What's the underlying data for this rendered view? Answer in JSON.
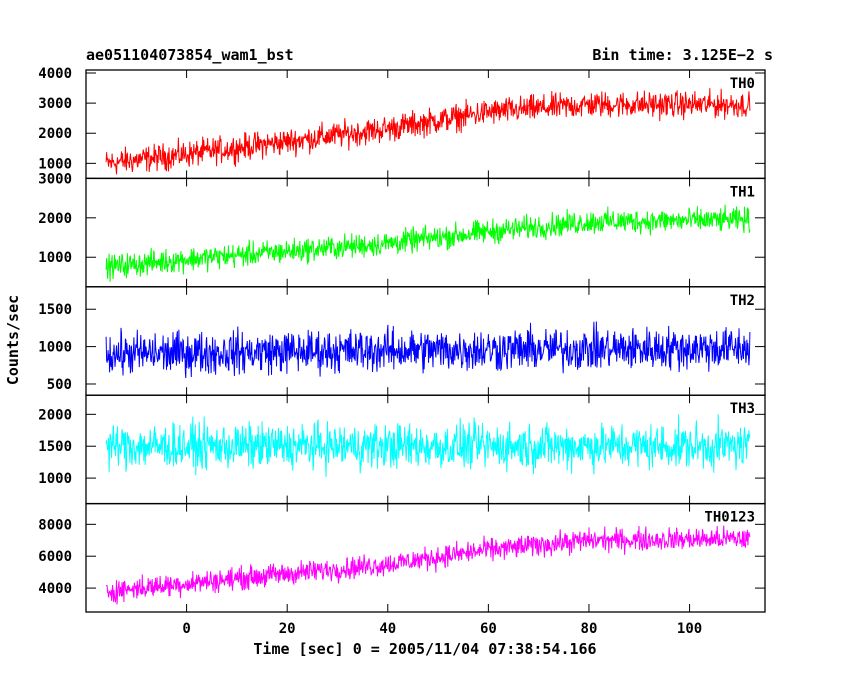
{
  "header": {
    "object_id": "ae051104073854_wam1_bst",
    "bin_time": "Bin time: 3.125E−2 s"
  },
  "chart_data": {
    "type": "line",
    "xlabel": "Time [sec] 0 = 2005/11/04 07:38:54.166",
    "ylabel": "Counts/sec",
    "xlim": [
      -20,
      115
    ],
    "x_ticks": [
      0,
      20,
      40,
      60,
      80,
      100
    ],
    "x_tick_labels": [
      "0",
      "20",
      "40",
      "60",
      "80",
      "100"
    ],
    "x_range_data": [
      -16,
      112
    ],
    "panels": [
      {
        "name": "TH0",
        "color": "#ff0000",
        "ylim": [
          500,
          4100
        ],
        "y_ticks": [
          1000,
          2000,
          3000,
          4000
        ],
        "y_tick_labels": [
          "1000",
          "2000",
          "3000",
          "4000"
        ],
        "trend": [
          [
            -16,
            1000
          ],
          [
            0,
            1300
          ],
          [
            40,
            2150
          ],
          [
            60,
            2700
          ],
          [
            80,
            2950
          ],
          [
            112,
            2950
          ]
        ],
        "noise": 650
      },
      {
        "name": "TH1",
        "color": "#00ff00",
        "ylim": [
          250,
          3000
        ],
        "y_ticks": [
          1000,
          2000,
          3000
        ],
        "y_tick_labels": [
          "1000",
          "2000",
          "3000"
        ],
        "trend": [
          [
            -16,
            750
          ],
          [
            0,
            950
          ],
          [
            40,
            1350
          ],
          [
            60,
            1650
          ],
          [
            80,
            1900
          ],
          [
            112,
            1950
          ]
        ],
        "noise": 450
      },
      {
        "name": "TH2",
        "color": "#0000ff",
        "ylim": [
          350,
          1800
        ],
        "y_ticks": [
          500,
          1000,
          1500
        ],
        "y_tick_labels": [
          "500",
          "1000",
          "1500"
        ],
        "trend": [
          [
            -16,
            900
          ],
          [
            40,
            950
          ],
          [
            112,
            980
          ]
        ],
        "noise": 420
      },
      {
        "name": "TH3",
        "color": "#00ffff",
        "ylim": [
          600,
          2300
        ],
        "y_ticks": [
          1000,
          1500,
          2000
        ],
        "y_tick_labels": [
          "1000",
          "1500",
          "2000"
        ],
        "trend": [
          [
            -16,
            1500
          ],
          [
            112,
            1500
          ]
        ],
        "noise": 520
      },
      {
        "name": "TH0123",
        "color": "#ff00ff",
        "ylim": [
          2500,
          9300
        ],
        "y_ticks": [
          4000,
          6000,
          8000
        ],
        "y_tick_labels": [
          "4000",
          "6000",
          "8000"
        ],
        "trend": [
          [
            -16,
            3800
          ],
          [
            0,
            4300
          ],
          [
            40,
            5500
          ],
          [
            60,
            6400
          ],
          [
            80,
            7000
          ],
          [
            112,
            7100
          ]
        ],
        "noise": 1050
      }
    ]
  }
}
